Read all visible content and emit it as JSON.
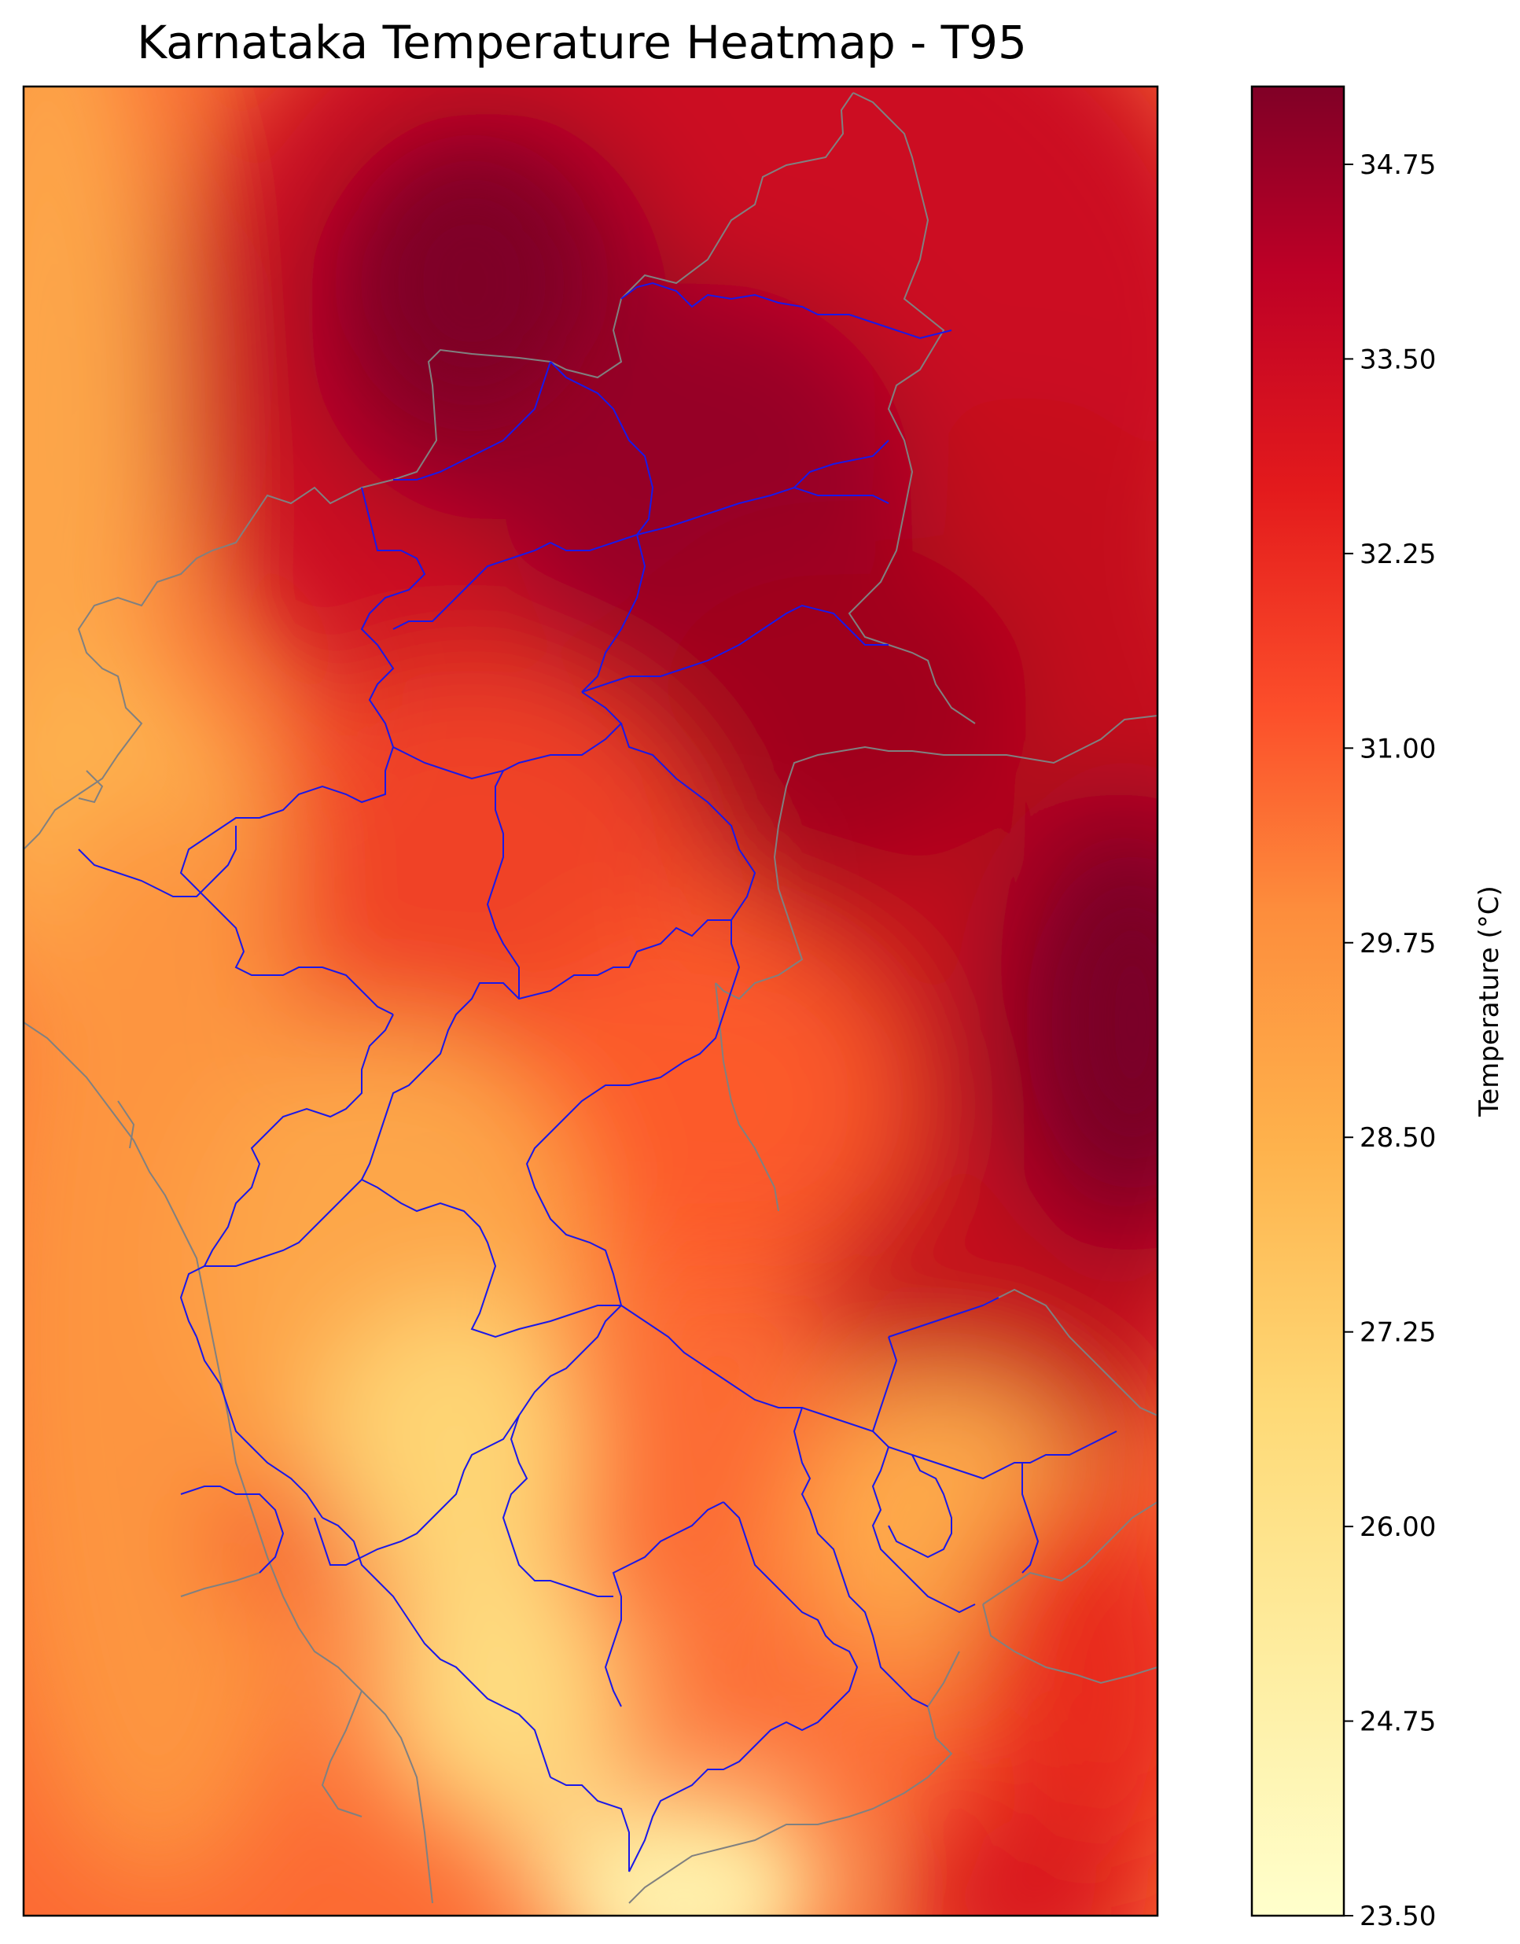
{
  "title": "Karnataka Temperature Heatmap - T95",
  "colorbar": {
    "label": "Temperature (°C)",
    "ticks": [
      "34.75",
      "33.50",
      "32.25",
      "31.00",
      "29.75",
      "28.50",
      "27.25",
      "26.00",
      "24.75",
      "23.50"
    ],
    "min": 23.5,
    "max": 35.25,
    "colors": [
      "#ffffcc",
      "#fed976",
      "#feb24c",
      "#fd8d3c",
      "#fc4e2a",
      "#e31a1c",
      "#bd0026",
      "#800026"
    ]
  }
}
